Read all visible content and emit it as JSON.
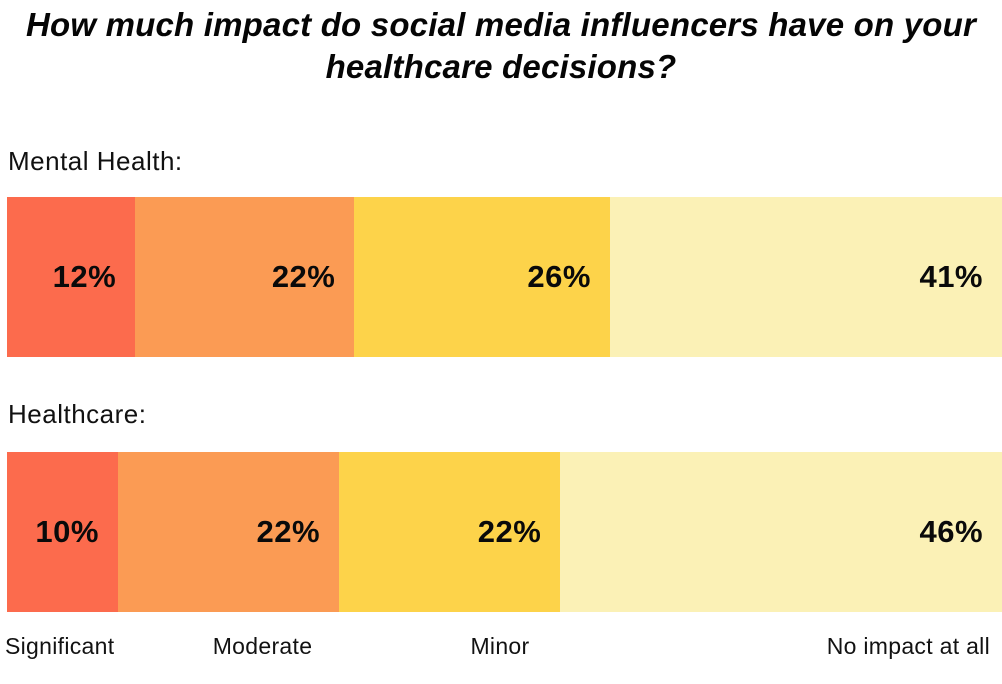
{
  "title": "How much impact do social media influencers have on your healthcare decisions?",
  "colors": {
    "background": "#FFFFFF",
    "text": "#0A0A0A",
    "significant": "#FC6B4D",
    "moderate": "#FB9B54",
    "minor": "#FDD34A",
    "no_impact": "#FBF1B6"
  },
  "chart_data": {
    "type": "bar",
    "variant": "horizontal-stacked-100pct",
    "title": "How much impact do social media influencers have on your healthcare decisions?",
    "categories": [
      "Significant",
      "Moderate",
      "Minor",
      "No impact at all"
    ],
    "segment_colors": [
      "#FC6B4D",
      "#FB9B54",
      "#FDD34A",
      "#FBF1B6"
    ],
    "series": [
      {
        "name": "Mental Health:",
        "values": [
          12,
          22,
          26,
          41
        ]
      },
      {
        "name": "Healthcare:",
        "values": [
          10,
          22,
          22,
          46
        ]
      }
    ],
    "value_suffix": "%",
    "value_label_position": "inside-right",
    "legend_position": "bottom",
    "grid": false,
    "axis": "none"
  }
}
